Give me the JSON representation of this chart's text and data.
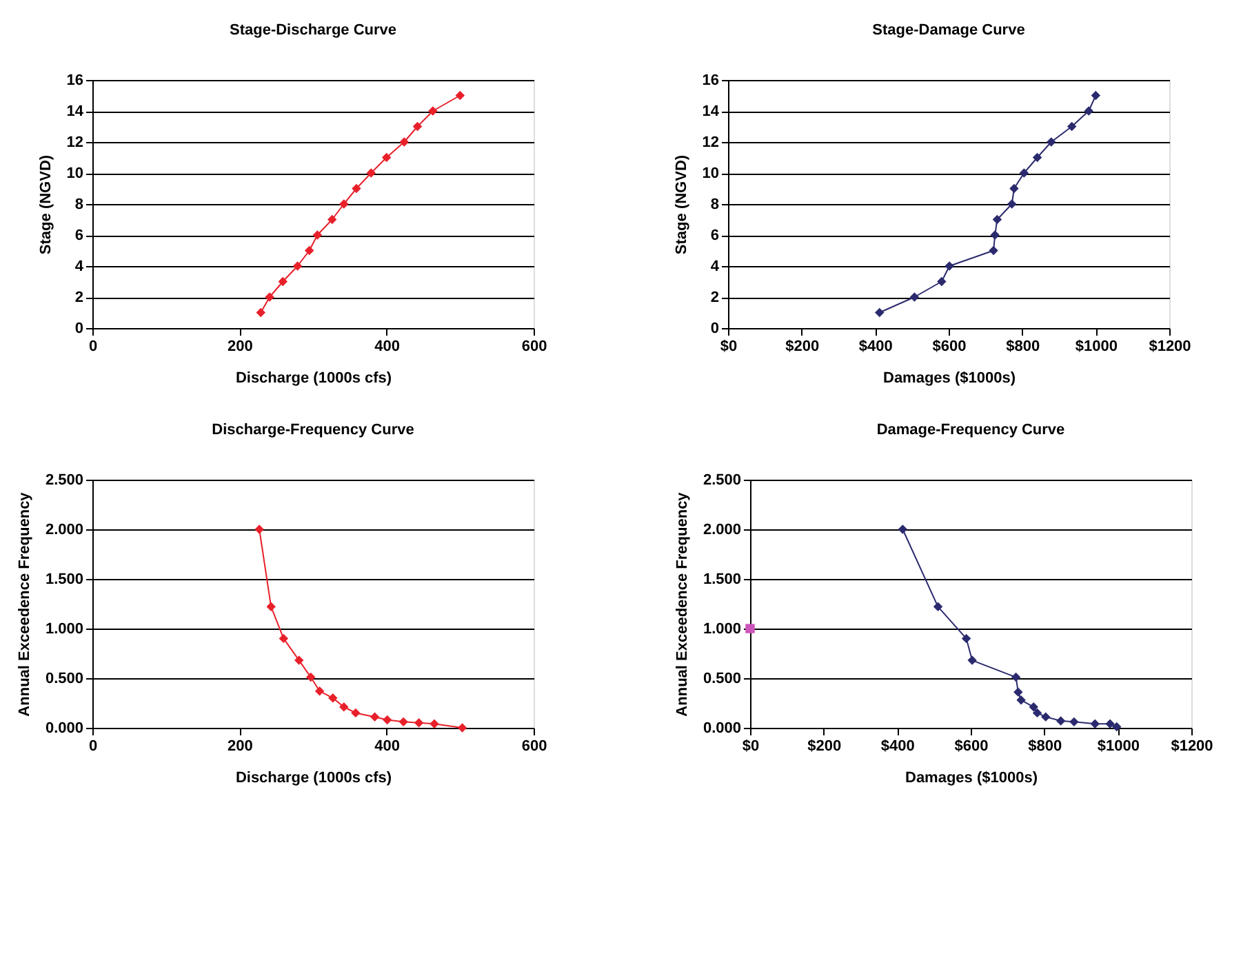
{
  "chart_data": [
    {
      "type": "line",
      "title": "Stage-Discharge Curve",
      "xlabel": "Discharge (1000s cfs)",
      "ylabel": "Stage (NGVD)",
      "marker": "diamond",
      "line_style": "solid",
      "grid": "y",
      "xlim": [
        0,
        600
      ],
      "xticks": [
        0,
        200,
        400,
        600
      ],
      "ylim": [
        0,
        16
      ],
      "yticks": [
        0,
        2,
        4,
        6,
        8,
        10,
        12,
        14,
        16
      ],
      "series": [
        {
          "color": "#e8202a",
          "x": [
            229,
            241,
            259,
            279,
            295,
            306,
            326,
            342,
            359,
            379,
            400,
            424,
            442,
            463,
            500
          ],
          "values": [
            1,
            2,
            3,
            4,
            5,
            6,
            7,
            8,
            9,
            10,
            11,
            12,
            13,
            14,
            15
          ]
        }
      ]
    },
    {
      "type": "line",
      "title": "Stage-Damage Curve",
      "xlabel": "Damages ($1000s)",
      "ylabel": "Stage (NGVD)",
      "marker": "diamond",
      "line_style": "solid",
      "grid": "y",
      "xlim": [
        0,
        1200
      ],
      "xticks": [
        {
          "value": 0,
          "label": "$0"
        },
        {
          "value": 200,
          "label": "$200"
        },
        {
          "value": 400,
          "label": "$400"
        },
        {
          "value": 600,
          "label": "$600"
        },
        {
          "value": 800,
          "label": "$800"
        },
        {
          "value": 1000,
          "label": "$1000"
        },
        {
          "value": 1200,
          "label": "$1200"
        }
      ],
      "ylim": [
        0,
        16
      ],
      "yticks": [
        0,
        2,
        4,
        6,
        8,
        10,
        12,
        14,
        16
      ],
      "series": [
        {
          "color": "#2b2a6e",
          "x": [
            412,
            507,
            581,
            602,
            722,
            726,
            732,
            772,
            778,
            805,
            841,
            879,
            935,
            981,
            1000
          ],
          "values": [
            1,
            2,
            3,
            4,
            5,
            6,
            7,
            8,
            9,
            10,
            11,
            12,
            13,
            14,
            15
          ]
        }
      ]
    },
    {
      "type": "line",
      "title": "Discharge-Frequency Curve",
      "xlabel": "Discharge (1000s cfs)",
      "ylabel": "Annual Exceedence Frequency",
      "marker": "diamond",
      "line_style": "solid",
      "grid": "y",
      "xlim": [
        0,
        600
      ],
      "xticks": [
        0,
        200,
        400,
        600
      ],
      "ylim": [
        0,
        2.5
      ],
      "yticks": [
        {
          "value": 0,
          "label": "0.000"
        },
        {
          "value": 0.5,
          "label": "0.500"
        },
        {
          "value": 1,
          "label": "1.000"
        },
        {
          "value": 1.5,
          "label": "1.500"
        },
        {
          "value": 2,
          "label": "2.000"
        },
        {
          "value": 2.5,
          "label": "2.500"
        }
      ],
      "series": [
        {
          "color": "#e8202a",
          "x": [
            227,
            243,
            260,
            281,
            297,
            309,
            327,
            342,
            358,
            384,
            401,
            423,
            444,
            465,
            503
          ],
          "values": [
            2.0,
            1.22,
            0.9,
            0.68,
            0.51,
            0.37,
            0.3,
            0.21,
            0.15,
            0.11,
            0.08,
            0.06,
            0.05,
            0.04,
            0.0
          ]
        }
      ]
    },
    {
      "type": "line",
      "title": "Damage-Frequency Curve",
      "xlabel": "Damages ($1000s)",
      "ylabel": "Annual Exceedence Frequency",
      "marker": "diamond",
      "line_style": "solid",
      "grid": "y",
      "xlim": [
        0,
        1200
      ],
      "xticks": [
        {
          "value": 0,
          "label": "$0"
        },
        {
          "value": 200,
          "label": "$200"
        },
        {
          "value": 400,
          "label": "$400"
        },
        {
          "value": 600,
          "label": "$600"
        },
        {
          "value": 800,
          "label": "$800"
        },
        {
          "value": 1000,
          "label": "$1000"
        },
        {
          "value": 1200,
          "label": "$1200"
        }
      ],
      "ylim": [
        0,
        2.5
      ],
      "yticks": [
        {
          "value": 0,
          "label": "0.000"
        },
        {
          "value": 0.5,
          "label": "0.500"
        },
        {
          "value": 1,
          "label": "1.000"
        },
        {
          "value": 1.5,
          "label": "1.500"
        },
        {
          "value": 2,
          "label": "2.000"
        },
        {
          "value": 2.5,
          "label": "2.500"
        }
      ],
      "series": [
        {
          "color": "#2b2a6e",
          "x": [
            415,
            511,
            588,
            604,
            723,
            729,
            737,
            771,
            781,
            804,
            845,
            881,
            938,
            979,
            997
          ],
          "values": [
            2.0,
            1.22,
            0.9,
            0.68,
            0.51,
            0.36,
            0.28,
            0.21,
            0.15,
            0.11,
            0.07,
            0.06,
            0.04,
            0.04,
            0.01
          ]
        },
        {
          "type": "scatter",
          "marker": "square",
          "color": "#cc55bb",
          "x": [
            0
          ],
          "values": [
            1.0
          ]
        }
      ]
    }
  ]
}
